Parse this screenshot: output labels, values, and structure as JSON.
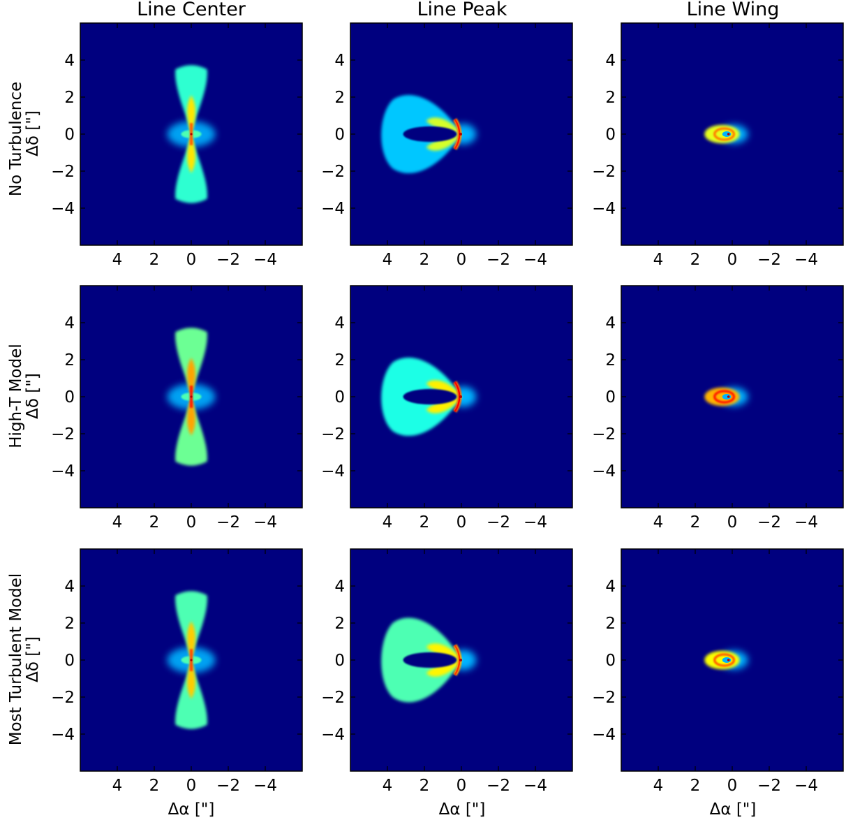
{
  "figure": {
    "columns": [
      "Line Center",
      "Line Peak",
      "Line Wing"
    ],
    "rows": [
      "No Turbulence",
      "High-T Model",
      "Most Turbulent Model"
    ],
    "xlabel": "Δα [\"]",
    "ylabel": "Δδ [\"]",
    "colormap": [
      "#00007f",
      "#0000ff",
      "#0080ff",
      "#00ffff",
      "#80ff80",
      "#ffff00",
      "#ff8000",
      "#ff0000",
      "#7f0000"
    ],
    "background_color": "#00007f"
  },
  "chart_data": [
    {
      "type": "heatmap",
      "panel": "No Turbulence / Line Center",
      "morphology": "bipolar-hourglass",
      "xlim": [
        6,
        -6
      ],
      "ylim": [
        -6,
        6
      ],
      "xticks": [
        4,
        2,
        0,
        -2,
        -4
      ],
      "yticks": [
        4,
        2,
        0,
        -2,
        -4
      ],
      "xtick_labels": [
        "4",
        "2",
        "0",
        "−2",
        "−4"
      ],
      "ytick_labels": [
        "4",
        "2",
        "0",
        "−2",
        "−4"
      ],
      "lobe_extent_y": [
        -3.8,
        3.8
      ],
      "peak_intensity": 0.78,
      "lobe_intensity": 0.42
    },
    {
      "type": "heatmap",
      "panel": "No Turbulence / Line Peak",
      "morphology": "horseshoe",
      "xlim": [
        6,
        -6
      ],
      "ylim": [
        -6,
        6
      ],
      "xticks": [
        4,
        2,
        0,
        -2,
        -4
      ],
      "yticks": [
        4,
        2,
        0,
        -2,
        -4
      ],
      "xtick_labels": [
        "4",
        "2",
        "0",
        "−2",
        "−4"
      ],
      "ytick_labels": [
        "4",
        "2",
        "0",
        "−2",
        "−4"
      ],
      "shell_extent_x": [
        0,
        4.5
      ],
      "shell_extent_y": [
        -2.5,
        2.5
      ],
      "peak_intensity": 0.85,
      "lobe_intensity": 0.32
    },
    {
      "type": "heatmap",
      "panel": "No Turbulence / Line Wing",
      "morphology": "compact-ring",
      "xlim": [
        6,
        -6
      ],
      "ylim": [
        -6,
        6
      ],
      "xticks": [
        4,
        2,
        0,
        -2,
        -4
      ],
      "yticks": [
        4,
        2,
        0,
        -2,
        -4
      ],
      "xtick_labels": [
        "4",
        "2",
        "0",
        "−2",
        "−4"
      ],
      "ytick_labels": [
        "4",
        "2",
        "0",
        "−2",
        "−4"
      ],
      "ring_extent_x": [
        -0.4,
        1.5
      ],
      "ring_extent_y": [
        -0.5,
        0.5
      ],
      "peak_intensity": 0.75,
      "lobe_intensity": 0.6
    },
    {
      "type": "heatmap",
      "panel": "High-T Model / Line Center",
      "morphology": "bipolar-hourglass",
      "xlim": [
        6,
        -6
      ],
      "ylim": [
        -6,
        6
      ],
      "xticks": [
        4,
        2,
        0,
        -2,
        -4
      ],
      "yticks": [
        4,
        2,
        0,
        -2,
        -4
      ],
      "xtick_labels": [
        "4",
        "2",
        "0",
        "−2",
        "−4"
      ],
      "ytick_labels": [
        "4",
        "2",
        "0",
        "−2",
        "−4"
      ],
      "lobe_extent_y": [
        -3.8,
        3.8
      ],
      "peak_intensity": 0.85,
      "lobe_intensity": 0.48
    },
    {
      "type": "heatmap",
      "panel": "High-T Model / Line Peak",
      "morphology": "horseshoe",
      "xlim": [
        6,
        -6
      ],
      "ylim": [
        -6,
        6
      ],
      "xticks": [
        4,
        2,
        0,
        -2,
        -4
      ],
      "yticks": [
        4,
        2,
        0,
        -2,
        -4
      ],
      "xtick_labels": [
        "4",
        "2",
        "0",
        "−2",
        "−4"
      ],
      "ytick_labels": [
        "4",
        "2",
        "0",
        "−2",
        "−4"
      ],
      "shell_extent_x": [
        0,
        4.5
      ],
      "shell_extent_y": [
        -2.5,
        2.5
      ],
      "peak_intensity": 0.88,
      "lobe_intensity": 0.4
    },
    {
      "type": "heatmap",
      "panel": "High-T Model / Line Wing",
      "morphology": "compact-ring",
      "xlim": [
        6,
        -6
      ],
      "ylim": [
        -6,
        6
      ],
      "xticks": [
        4,
        2,
        0,
        -2,
        -4
      ],
      "yticks": [
        4,
        2,
        0,
        -2,
        -4
      ],
      "xtick_labels": [
        "4",
        "2",
        "0",
        "−2",
        "−4"
      ],
      "ytick_labels": [
        "4",
        "2",
        "0",
        "−2",
        "−4"
      ],
      "ring_extent_x": [
        -0.4,
        1.5
      ],
      "ring_extent_y": [
        -0.5,
        0.5
      ],
      "peak_intensity": 0.85,
      "lobe_intensity": 0.7
    },
    {
      "type": "heatmap",
      "panel": "Most Turbulent Model / Line Center",
      "morphology": "bipolar-hourglass",
      "xlim": [
        6,
        -6
      ],
      "ylim": [
        -6,
        6
      ],
      "xticks": [
        4,
        2,
        0,
        -2,
        -4
      ],
      "yticks": [
        4,
        2,
        0,
        -2,
        -4
      ],
      "xtick_labels": [
        "4",
        "2",
        "0",
        "−2",
        "−4"
      ],
      "ytick_labels": [
        "4",
        "2",
        "0",
        "−2",
        "−4"
      ],
      "lobe_extent_y": [
        -3.8,
        3.8
      ],
      "peak_intensity": 0.8,
      "lobe_intensity": 0.45
    },
    {
      "type": "heatmap",
      "panel": "Most Turbulent Model / Line Peak",
      "morphology": "horseshoe",
      "xlim": [
        6,
        -6
      ],
      "ylim": [
        -6,
        6
      ],
      "xticks": [
        4,
        2,
        0,
        -2,
        -4
      ],
      "yticks": [
        4,
        2,
        0,
        -2,
        -4
      ],
      "xtick_labels": [
        "4",
        "2",
        "0",
        "−2",
        "−4"
      ],
      "ytick_labels": [
        "4",
        "2",
        "0",
        "−2",
        "−4"
      ],
      "shell_extent_x": [
        0,
        4.5
      ],
      "shell_extent_y": [
        -2.7,
        2.7
      ],
      "peak_intensity": 0.82,
      "lobe_intensity": 0.45
    },
    {
      "type": "heatmap",
      "panel": "Most Turbulent Model / Line Wing",
      "morphology": "compact-ring",
      "xlim": [
        6,
        -6
      ],
      "ylim": [
        -6,
        6
      ],
      "xticks": [
        4,
        2,
        0,
        -2,
        -4
      ],
      "yticks": [
        4,
        2,
        0,
        -2,
        -4
      ],
      "xtick_labels": [
        "4",
        "2",
        "0",
        "−2",
        "−4"
      ],
      "ytick_labels": [
        "4",
        "2",
        "0",
        "−2",
        "−4"
      ],
      "ring_extent_x": [
        -0.4,
        1.5
      ],
      "ring_extent_y": [
        -0.5,
        0.5
      ],
      "peak_intensity": 0.78,
      "lobe_intensity": 0.62
    }
  ]
}
